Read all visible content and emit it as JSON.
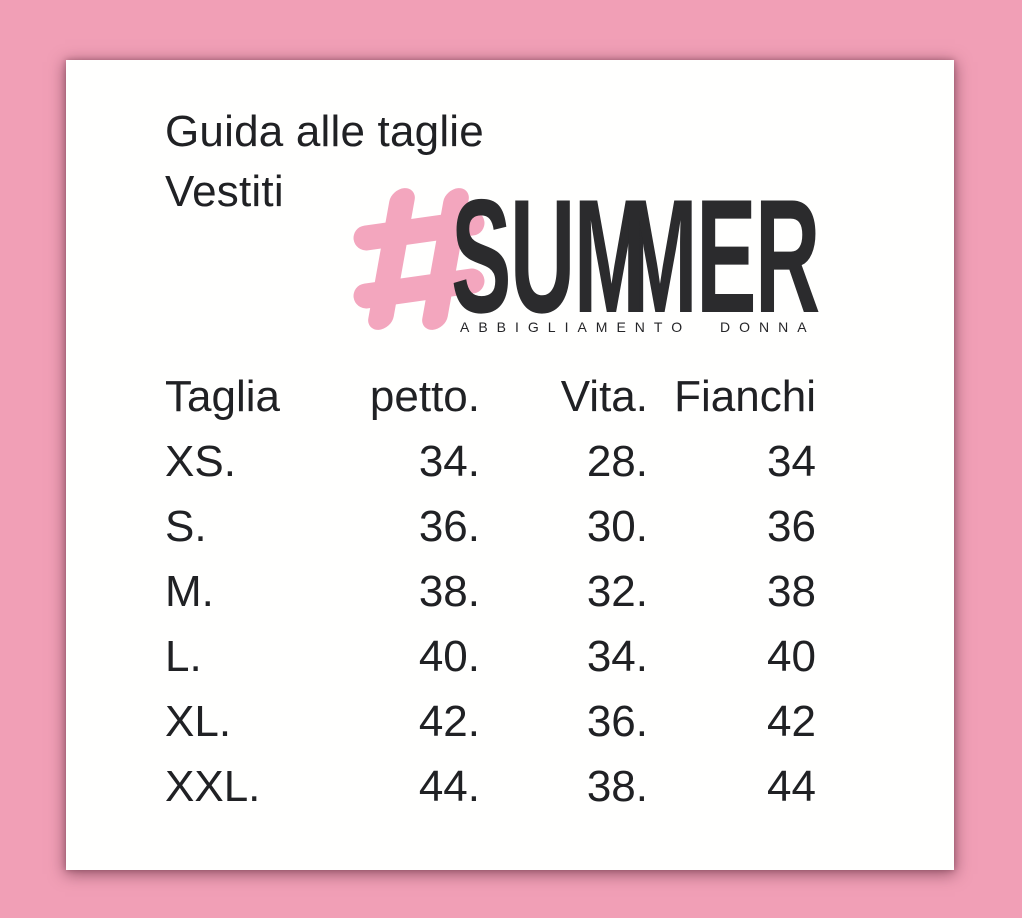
{
  "header": {
    "title": "Guida alle taglie",
    "subtitle": "Vestiti"
  },
  "logo": {
    "hashtag_icon": "hashtag",
    "brand_parts": [
      "SU",
      "M",
      "M",
      "ER"
    ],
    "brand_full": "SUMMER",
    "tagline": "ABBIGLIAMENTO DONNA"
  },
  "size_table": {
    "columns": [
      "Taglia",
      "petto.",
      "Vita.",
      "Fianchi"
    ],
    "rows": [
      [
        "XS.",
        "34.",
        "28.",
        "34"
      ],
      [
        "S.",
        "36.",
        "30.",
        "36"
      ],
      [
        "M.",
        "38.",
        "32.",
        "38"
      ],
      [
        "L.",
        "40.",
        "34.",
        "40"
      ],
      [
        "XL.",
        "42.",
        "36.",
        "42"
      ],
      [
        "XXL.",
        "44.",
        "38.",
        "44"
      ]
    ]
  },
  "colors": {
    "background_pink": "#F19FB6",
    "card_white": "#FFFFFE",
    "text_dark": "#202124",
    "logo_pink": "#F3A6BE",
    "logo_dark": "#2B2B2D"
  }
}
